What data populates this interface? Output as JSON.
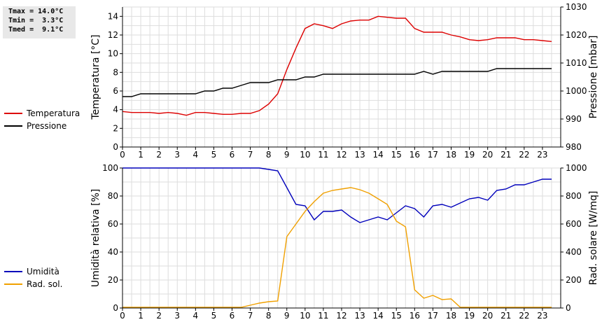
{
  "stats": {
    "tmax": "Tmax = 14.0°C",
    "tmin": "Tmin =  3.3°C",
    "tmed": "Tmed =  9.1°C"
  },
  "chart_data": [
    {
      "type": "line",
      "xlabel": "",
      "xlim": [
        0,
        24
      ],
      "x_ticks": [
        "0",
        "1",
        "2",
        "3",
        "4",
        "5",
        "6",
        "7",
        "8",
        "9",
        "10",
        "11",
        "12",
        "13",
        "14",
        "15",
        "16",
        "17",
        "18",
        "19",
        "20",
        "21",
        "22",
        "23"
      ],
      "grid": true,
      "legend_position": "left",
      "left_axis": {
        "label": "Temperatura [°C]",
        "lim": [
          0,
          15
        ],
        "ticks": [
          "0",
          "2",
          "4",
          "6",
          "8",
          "10",
          "12",
          "14"
        ],
        "tick_values": [
          0,
          2,
          4,
          6,
          8,
          10,
          12,
          14
        ]
      },
      "right_axis": {
        "label": "Pressione [mbar]",
        "lim": [
          980,
          1030
        ],
        "ticks": [
          "980",
          "990",
          "1000",
          "1010",
          "1020",
          "1030"
        ],
        "tick_values": [
          980,
          990,
          1000,
          1010,
          1020,
          1030
        ]
      },
      "series": [
        {
          "name": "Temperatura",
          "axis": "left",
          "color": "#dd0000",
          "x": [
            0,
            0.5,
            1,
            1.5,
            2,
            2.5,
            3,
            3.5,
            4,
            4.5,
            5,
            5.5,
            6,
            6.5,
            7,
            7.5,
            8,
            8.5,
            9,
            9.5,
            10,
            10.5,
            11,
            11.5,
            12,
            12.5,
            13,
            13.5,
            14,
            14.5,
            15,
            15.5,
            16,
            16.5,
            17,
            17.5,
            18,
            18.5,
            19,
            19.5,
            20,
            20.5,
            21,
            21.5,
            22,
            22.5,
            23,
            23.5
          ],
          "values": [
            3.8,
            3.7,
            3.7,
            3.7,
            3.6,
            3.7,
            3.6,
            3.4,
            3.7,
            3.7,
            3.6,
            3.5,
            3.5,
            3.6,
            3.6,
            3.9,
            4.6,
            5.7,
            8.3,
            10.6,
            12.7,
            13.2,
            13.0,
            12.7,
            13.2,
            13.5,
            13.6,
            13.6,
            14.0,
            13.9,
            13.8,
            13.8,
            12.7,
            12.3,
            12.3,
            12.3,
            12.0,
            11.8,
            11.5,
            11.4,
            11.5,
            11.7,
            11.7,
            11.7,
            11.5,
            11.5,
            11.4,
            11.3
          ]
        },
        {
          "name": "Pressione",
          "axis": "right",
          "color": "#000000",
          "x": [
            0,
            0.5,
            1,
            1.5,
            2,
            2.5,
            3,
            3.5,
            4,
            4.5,
            5,
            5.5,
            6,
            6.5,
            7,
            7.5,
            8,
            8.5,
            9,
            9.5,
            10,
            10.5,
            11,
            11.5,
            12,
            12.5,
            13,
            13.5,
            14,
            14.5,
            15,
            15.5,
            16,
            16.5,
            17,
            17.5,
            18,
            18.5,
            19,
            19.5,
            20,
            20.5,
            21,
            21.5,
            22,
            22.5,
            23,
            23.5
          ],
          "values": [
            998,
            998,
            999,
            999,
            999,
            999,
            999,
            999,
            999,
            1000,
            1000,
            1001,
            1001,
            1002,
            1003,
            1003,
            1003,
            1004,
            1004,
            1004,
            1005,
            1005,
            1006,
            1006,
            1006,
            1006,
            1006,
            1006,
            1006,
            1006,
            1006,
            1006,
            1006,
            1007,
            1006,
            1007,
            1007,
            1007,
            1007,
            1007,
            1007,
            1008,
            1008,
            1008,
            1008,
            1008,
            1008,
            1008
          ]
        }
      ]
    },
    {
      "type": "line",
      "xlabel": "",
      "xlim": [
        0,
        24
      ],
      "x_ticks": [
        "0",
        "1",
        "2",
        "3",
        "4",
        "5",
        "6",
        "7",
        "8",
        "9",
        "10",
        "11",
        "12",
        "13",
        "14",
        "15",
        "16",
        "17",
        "18",
        "19",
        "20",
        "21",
        "22",
        "23"
      ],
      "grid": true,
      "legend_position": "left",
      "left_axis": {
        "label": "Umidità relativa [%]",
        "lim": [
          0,
          100
        ],
        "ticks": [
          "0",
          "20",
          "40",
          "60",
          "80",
          "100"
        ],
        "tick_values": [
          0,
          20,
          40,
          60,
          80,
          100
        ]
      },
      "right_axis": {
        "label": "Rad. solare [W/mq]",
        "lim": [
          0,
          1000
        ],
        "ticks": [
          "0",
          "200",
          "400",
          "600",
          "800",
          "1000"
        ],
        "tick_values": [
          0,
          200,
          400,
          600,
          800,
          1000
        ]
      },
      "series": [
        {
          "name": "Umidità",
          "axis": "left",
          "color": "#0000bb",
          "x": [
            0,
            0.5,
            1,
            1.5,
            2,
            2.5,
            3,
            3.5,
            4,
            4.5,
            5,
            5.5,
            6,
            6.5,
            7,
            7.5,
            8,
            8.5,
            9,
            9.5,
            10,
            10.5,
            11,
            11.5,
            12,
            12.5,
            13,
            13.5,
            14,
            14.5,
            15,
            15.5,
            16,
            16.5,
            17,
            17.5,
            18,
            18.5,
            19,
            19.5,
            20,
            20.5,
            21,
            21.5,
            22,
            22.5,
            23,
            23.5
          ],
          "values": [
            100,
            100,
            100,
            100,
            100,
            100,
            100,
            100,
            100,
            100,
            100,
            100,
            100,
            100,
            100,
            100,
            99,
            98,
            86,
            74,
            73,
            63,
            69,
            69,
            70,
            65,
            61,
            63,
            65,
            63,
            68,
            73,
            71,
            65,
            73,
            74,
            72,
            75,
            78,
            79,
            77,
            84,
            85,
            88,
            88,
            90,
            92,
            92
          ]
        },
        {
          "name": "Rad. sol.",
          "axis": "right",
          "color": "#f0a000",
          "x": [
            0,
            0.5,
            1,
            1.5,
            2,
            2.5,
            3,
            3.5,
            4,
            4.5,
            5,
            5.5,
            6,
            6.5,
            7,
            7.5,
            8,
            8.5,
            9,
            9.5,
            10,
            10.5,
            11,
            11.5,
            12,
            12.5,
            13,
            13.5,
            14,
            14.5,
            15,
            15.5,
            16,
            16.5,
            17,
            17.5,
            18,
            18.5,
            19,
            19.5,
            20,
            20.5,
            21,
            21.5,
            22,
            22.5,
            23,
            23.5
          ],
          "values": [
            5,
            5,
            5,
            5,
            5,
            5,
            5,
            5,
            5,
            5,
            5,
            5,
            5,
            5,
            20,
            35,
            45,
            50,
            510,
            600,
            690,
            760,
            820,
            840,
            850,
            860,
            845,
            820,
            780,
            740,
            620,
            580,
            130,
            70,
            90,
            60,
            65,
            5,
            5,
            5,
            5,
            5,
            5,
            5,
            5,
            5,
            5,
            5
          ]
        }
      ]
    }
  ]
}
